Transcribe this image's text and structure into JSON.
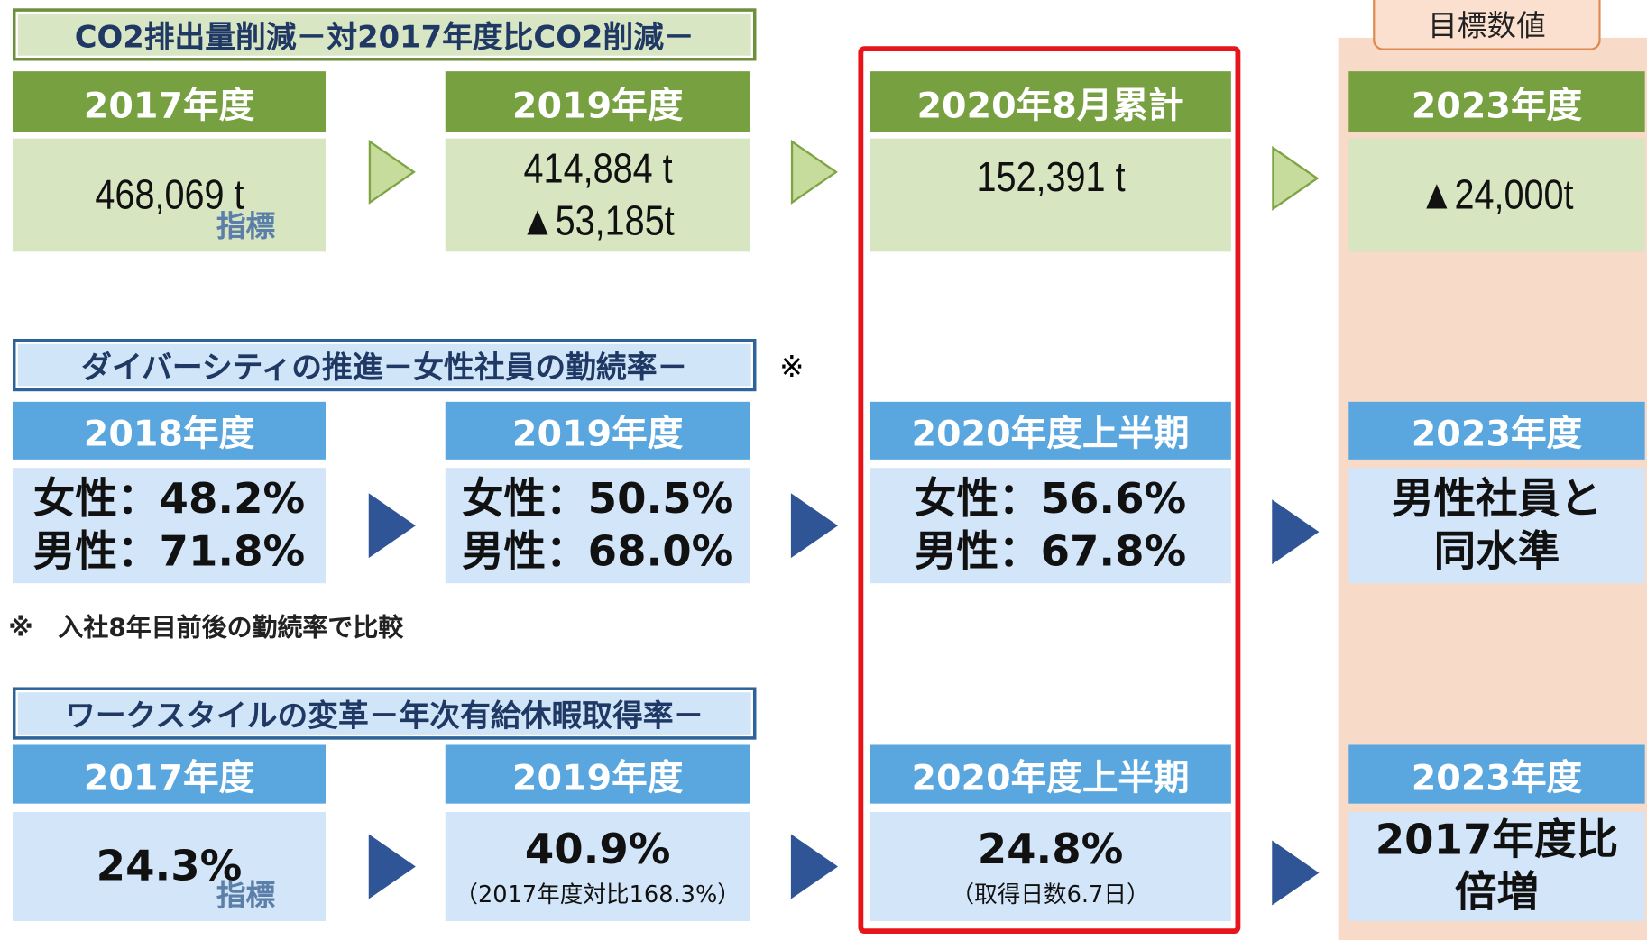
{
  "target_label": "目標数値",
  "sections": [
    {
      "title": "CO2排出量削減－対2017年度比CO2削減－",
      "theme": "green",
      "cells": [
        {
          "header": "2017年度",
          "lines": [
            "468,069 t"
          ],
          "note": "指標"
        },
        {
          "header": "2019年度",
          "lines": [
            "414,884 t",
            "▲53,185t"
          ]
        },
        {
          "header": "2020年8月累計",
          "lines": [
            "152,391 t"
          ]
        },
        {
          "header": "2023年度",
          "lines": [
            "▲24,000t"
          ]
        }
      ]
    },
    {
      "title": "ダイバーシティの推進－女性社員の勤続率－",
      "theme": "blue",
      "mark": "※",
      "cells": [
        {
          "header": "2018年度",
          "lines": [
            "女性：48.2%",
            "男性：71.8%"
          ]
        },
        {
          "header": "2019年度",
          "lines": [
            "女性：50.5%",
            "男性：68.0%"
          ]
        },
        {
          "header": "2020年度上半期",
          "lines": [
            "女性：56.6%",
            "男性：67.8%"
          ]
        },
        {
          "header": "2023年度",
          "lines": [
            "男性社員と",
            "同水準"
          ]
        }
      ]
    },
    {
      "title": "ワークスタイルの変革－年次有給休暇取得率－",
      "theme": "blue",
      "cells": [
        {
          "header": "2017年度",
          "lines": [
            "24.3%"
          ],
          "note": "指標"
        },
        {
          "header": "2019年度",
          "lines": [
            "40.9%"
          ],
          "sub": "（2017年度対比168.3%）"
        },
        {
          "header": "2020年度上半期",
          "lines": [
            "24.8%"
          ],
          "sub": "（取得日数6.7日）"
        },
        {
          "header": "2023年度",
          "lines": [
            "2017年度比",
            "倍増"
          ]
        }
      ]
    }
  ],
  "footnote": "※　入社8年目前後の勤続率で比較"
}
